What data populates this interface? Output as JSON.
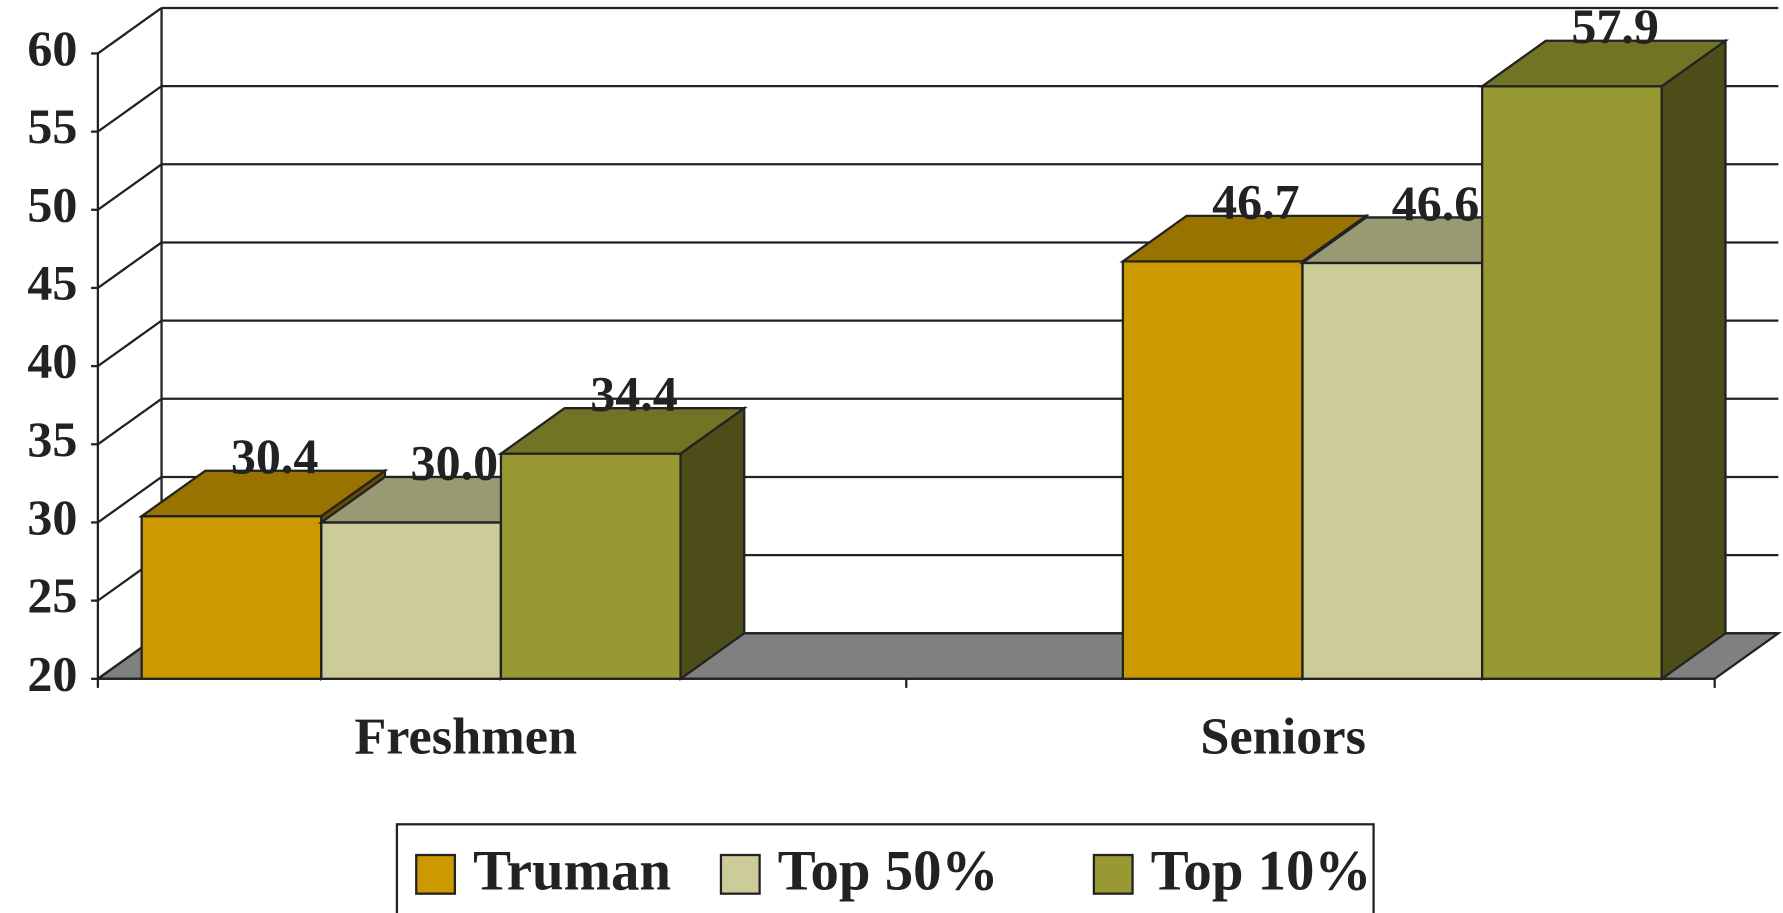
{
  "chart_data": {
    "type": "bar3d",
    "categories": [
      "Freshmen",
      "Seniors"
    ],
    "series": [
      {
        "name": "Truman",
        "color": "#cc9900",
        "values": [
          30.4,
          46.7
        ]
      },
      {
        "name": "Top 50%",
        "color": "#cccc99",
        "values": [
          30.0,
          46.6
        ],
        "value_labels": [
          "30.0",
          "46.6"
        ]
      },
      {
        "name": "Top 10%",
        "color": "#999933",
        "values": [
          34.4,
          57.9
        ]
      }
    ],
    "ylim": [
      20,
      60
    ],
    "yticks": [
      20,
      25,
      30,
      35,
      40,
      45,
      50,
      55,
      60
    ],
    "grid": true,
    "legend": "bottom"
  }
}
